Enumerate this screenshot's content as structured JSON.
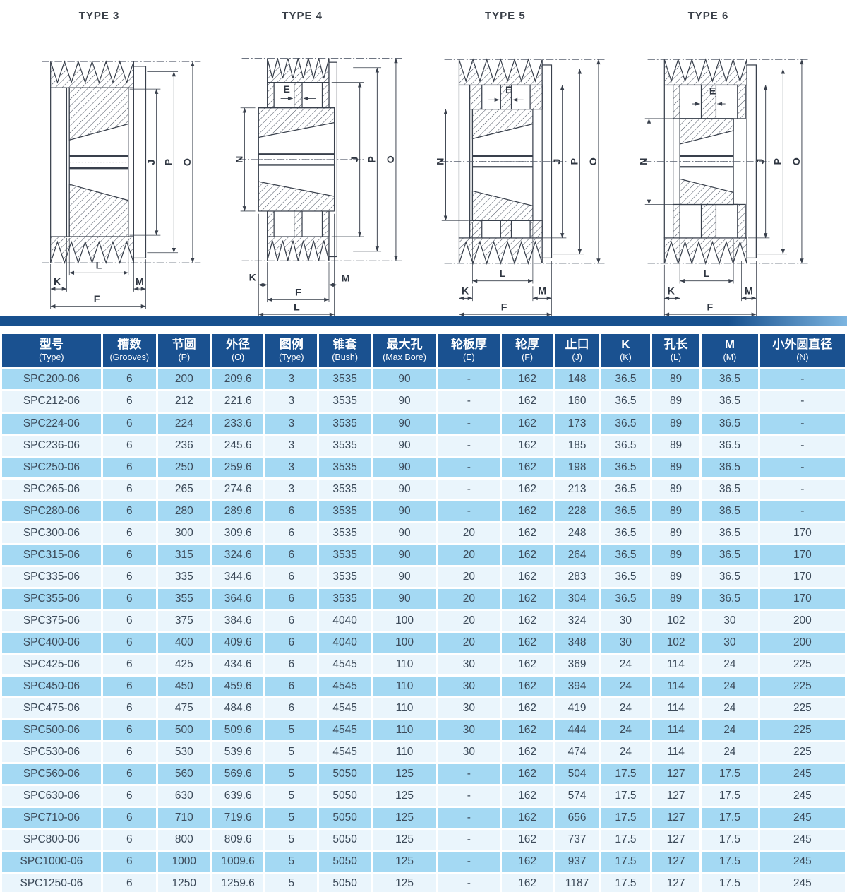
{
  "drawings": [
    {
      "title": "TYPE 3",
      "labels": {
        "j": "J",
        "p": "P",
        "o": "O",
        "k": "K",
        "l": "L",
        "m": "M",
        "f": "F"
      }
    },
    {
      "title": "TYPE 4",
      "labels": {
        "e": "E",
        "n": "N",
        "j": "J",
        "p": "P",
        "o": "O",
        "k": "K",
        "l": "L",
        "m": "M",
        "f": "F"
      }
    },
    {
      "title": "TYPE 5",
      "labels": {
        "e": "E",
        "n": "N",
        "j": "J",
        "p": "P",
        "o": "O",
        "k": "K",
        "l": "L",
        "m": "M",
        "f": "F"
      }
    },
    {
      "title": "TYPE 6",
      "labels": {
        "e": "E",
        "n": "N",
        "j": "J",
        "p": "P",
        "o": "O",
        "k": "K",
        "l": "L",
        "m": "M",
        "f": "F"
      }
    }
  ],
  "table": {
    "columns": [
      {
        "cn": "型号",
        "en": "(Type)"
      },
      {
        "cn": "槽数",
        "en": "(Grooves)"
      },
      {
        "cn": "节圆",
        "en": "(P)"
      },
      {
        "cn": "外径",
        "en": "(O)"
      },
      {
        "cn": "图例",
        "en": "(Type)"
      },
      {
        "cn": "锥套",
        "en": "(Bush)"
      },
      {
        "cn": "最大孔",
        "en": "(Max Bore)"
      },
      {
        "cn": "轮板厚",
        "en": "(E)"
      },
      {
        "cn": "轮厚",
        "en": "(F)"
      },
      {
        "cn": "止口",
        "en": "(J)"
      },
      {
        "cn": "K",
        "en": "(K)"
      },
      {
        "cn": "孔长",
        "en": "(L)"
      },
      {
        "cn": "M",
        "en": "(M)"
      },
      {
        "cn": "小外圆直径",
        "en": "(N)"
      }
    ],
    "rows": [
      [
        "SPC200-06",
        "6",
        "200",
        "209.6",
        "3",
        "3535",
        "90",
        "-",
        "162",
        "148",
        "36.5",
        "89",
        "36.5",
        "-"
      ],
      [
        "SPC212-06",
        "6",
        "212",
        "221.6",
        "3",
        "3535",
        "90",
        "-",
        "162",
        "160",
        "36.5",
        "89",
        "36.5",
        "-"
      ],
      [
        "SPC224-06",
        "6",
        "224",
        "233.6",
        "3",
        "3535",
        "90",
        "-",
        "162",
        "173",
        "36.5",
        "89",
        "36.5",
        "-"
      ],
      [
        "SPC236-06",
        "6",
        "236",
        "245.6",
        "3",
        "3535",
        "90",
        "-",
        "162",
        "185",
        "36.5",
        "89",
        "36.5",
        "-"
      ],
      [
        "SPC250-06",
        "6",
        "250",
        "259.6",
        "3",
        "3535",
        "90",
        "-",
        "162",
        "198",
        "36.5",
        "89",
        "36.5",
        "-"
      ],
      [
        "SPC265-06",
        "6",
        "265",
        "274.6",
        "3",
        "3535",
        "90",
        "-",
        "162",
        "213",
        "36.5",
        "89",
        "36.5",
        "-"
      ],
      [
        "SPC280-06",
        "6",
        "280",
        "289.6",
        "6",
        "3535",
        "90",
        "-",
        "162",
        "228",
        "36.5",
        "89",
        "36.5",
        "-"
      ],
      [
        "SPC300-06",
        "6",
        "300",
        "309.6",
        "6",
        "3535",
        "90",
        "20",
        "162",
        "248",
        "36.5",
        "89",
        "36.5",
        "170"
      ],
      [
        "SPC315-06",
        "6",
        "315",
        "324.6",
        "6",
        "3535",
        "90",
        "20",
        "162",
        "264",
        "36.5",
        "89",
        "36.5",
        "170"
      ],
      [
        "SPC335-06",
        "6",
        "335",
        "344.6",
        "6",
        "3535",
        "90",
        "20",
        "162",
        "283",
        "36.5",
        "89",
        "36.5",
        "170"
      ],
      [
        "SPC355-06",
        "6",
        "355",
        "364.6",
        "6",
        "3535",
        "90",
        "20",
        "162",
        "304",
        "36.5",
        "89",
        "36.5",
        "170"
      ],
      [
        "SPC375-06",
        "6",
        "375",
        "384.6",
        "6",
        "4040",
        "100",
        "20",
        "162",
        "324",
        "30",
        "102",
        "30",
        "200"
      ],
      [
        "SPC400-06",
        "6",
        "400",
        "409.6",
        "6",
        "4040",
        "100",
        "20",
        "162",
        "348",
        "30",
        "102",
        "30",
        "200"
      ],
      [
        "SPC425-06",
        "6",
        "425",
        "434.6",
        "6",
        "4545",
        "110",
        "30",
        "162",
        "369",
        "24",
        "114",
        "24",
        "225"
      ],
      [
        "SPC450-06",
        "6",
        "450",
        "459.6",
        "6",
        "4545",
        "110",
        "30",
        "162",
        "394",
        "24",
        "114",
        "24",
        "225"
      ],
      [
        "SPC475-06",
        "6",
        "475",
        "484.6",
        "6",
        "4545",
        "110",
        "30",
        "162",
        "419",
        "24",
        "114",
        "24",
        "225"
      ],
      [
        "SPC500-06",
        "6",
        "500",
        "509.6",
        "5",
        "4545",
        "110",
        "30",
        "162",
        "444",
        "24",
        "114",
        "24",
        "225"
      ],
      [
        "SPC530-06",
        "6",
        "530",
        "539.6",
        "5",
        "4545",
        "110",
        "30",
        "162",
        "474",
        "24",
        "114",
        "24",
        "225"
      ],
      [
        "SPC560-06",
        "6",
        "560",
        "569.6",
        "5",
        "5050",
        "125",
        "-",
        "162",
        "504",
        "17.5",
        "127",
        "17.5",
        "245"
      ],
      [
        "SPC630-06",
        "6",
        "630",
        "639.6",
        "5",
        "5050",
        "125",
        "-",
        "162",
        "574",
        "17.5",
        "127",
        "17.5",
        "245"
      ],
      [
        "SPC710-06",
        "6",
        "710",
        "719.6",
        "5",
        "5050",
        "125",
        "-",
        "162",
        "656",
        "17.5",
        "127",
        "17.5",
        "245"
      ],
      [
        "SPC800-06",
        "6",
        "800",
        "809.6",
        "5",
        "5050",
        "125",
        "-",
        "162",
        "737",
        "17.5",
        "127",
        "17.5",
        "245"
      ],
      [
        "SPC1000-06",
        "6",
        "1000",
        "1009.6",
        "5",
        "5050",
        "125",
        "-",
        "162",
        "937",
        "17.5",
        "127",
        "17.5",
        "245"
      ],
      [
        "SPC1250-06",
        "6",
        "1250",
        "1259.6",
        "5",
        "5050",
        "125",
        "-",
        "162",
        "1187",
        "17.5",
        "127",
        "17.5",
        "245"
      ]
    ]
  },
  "colors": {
    "header_bg": "#1a5190",
    "row_light_blue": "#a4d9f3",
    "row_pale_blue": "#eaf5fc",
    "header_text": "#ffffff",
    "cell_text": "#3c4a59",
    "drawing_line": "#39404c"
  }
}
